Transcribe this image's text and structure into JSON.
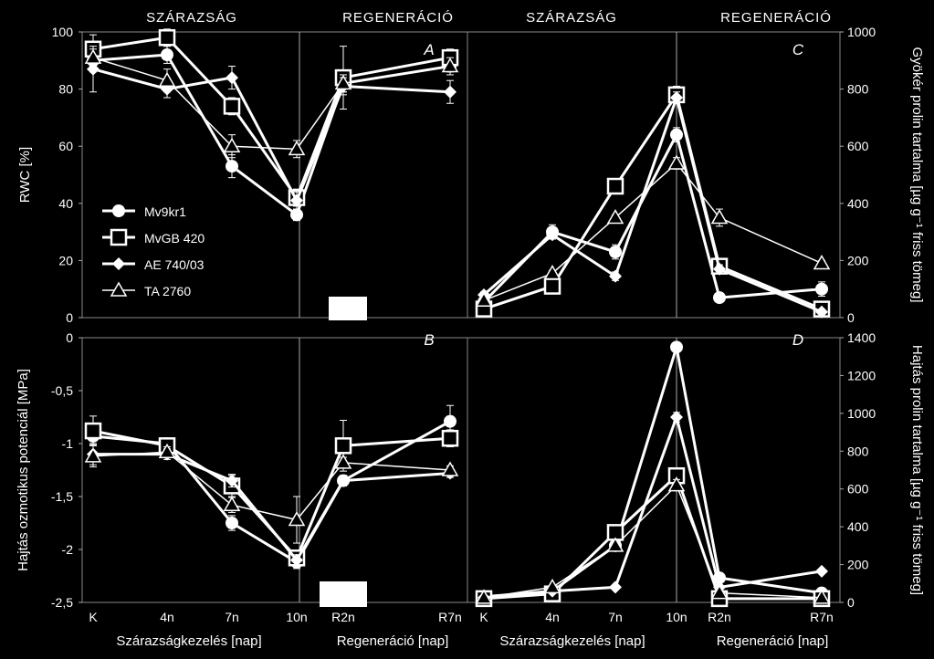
{
  "headers": {
    "left_drought": "SZÁRAZSÁG",
    "left_regen": "REGENERÁCIÓ",
    "right_drought": "SZÁRAZSÁG",
    "right_regen": "REGENERÁCIÓ"
  },
  "x_labels": {
    "left_drought": "Szárazságkezelés [nap]",
    "left_regen": "Regeneráció [nap]",
    "right_drought": "Szárazságkezelés [nap]",
    "right_regen": "Regeneráció [nap]"
  },
  "legend": [
    {
      "name": "Mv9kr1",
      "marker": "circle"
    },
    {
      "name": "MvGB 420",
      "marker": "square"
    },
    {
      "name": "AE 740/03",
      "marker": "diamond"
    },
    {
      "name": "TA 2760",
      "marker": "triangle"
    }
  ],
  "colors": {
    "background": "#000000",
    "foreground": "#ffffff"
  },
  "chart_data": [
    {
      "panel": "A",
      "type": "line",
      "categories": [
        "K",
        "4n",
        "7n",
        "10n",
        "R2n",
        "R7n"
      ],
      "ylabel": "RWC [%]",
      "ylim": [
        0,
        100
      ],
      "yticks": [
        "0",
        "20",
        "40",
        "60",
        "80",
        "100"
      ],
      "axis_side": "left",
      "series": [
        {
          "name": "Mv9kr1",
          "values": [
            90,
            92,
            53,
            36,
            82,
            88
          ],
          "err": [
            4,
            3,
            4,
            2,
            3,
            2
          ]
        },
        {
          "name": "MvGB 420",
          "values": [
            94,
            98,
            74,
            42,
            84,
            91
          ],
          "err": [
            5,
            3,
            3,
            3,
            11,
            3
          ]
        },
        {
          "name": "AE 740/03",
          "values": [
            87,
            80,
            84,
            41,
            81,
            79
          ],
          "err": [
            8,
            3,
            4,
            3,
            3,
            4
          ]
        },
        {
          "name": "TA 2760",
          "values": [
            91,
            83,
            60,
            59,
            82,
            88
          ],
          "err": [
            3,
            4,
            4,
            3,
            3,
            3
          ]
        }
      ]
    },
    {
      "panel": "B",
      "type": "line",
      "categories": [
        "K",
        "4n",
        "7n",
        "10n",
        "R2n",
        "R7n"
      ],
      "ylabel": "Hajtás ozmotikus potenciál [MPa]",
      "ylim": [
        -2.5,
        0
      ],
      "yticks": [
        "0",
        "-0,5",
        "-1",
        "-1,5",
        "-2",
        "-2,5"
      ],
      "axis_side": "left",
      "series": [
        {
          "name": "Mv9kr1",
          "values": [
            -0.93,
            -1.0,
            -1.75,
            -2.12,
            -1.35,
            -0.79
          ],
          "err": [
            0.08,
            0.05,
            0.07,
            0.06,
            0.05,
            0.15
          ]
        },
        {
          "name": "MvGB 420",
          "values": [
            -0.88,
            -1.02,
            -1.4,
            -2.08,
            -1.02,
            -0.95
          ],
          "err": [
            0.14,
            0.05,
            0.1,
            0.05,
            0.24,
            0.08
          ]
        },
        {
          "name": "AE 740/03",
          "values": [
            -1.1,
            -1.1,
            -1.35,
            -2.1,
            -1.35,
            -1.28
          ],
          "err": [
            0.1,
            0.05,
            0.06,
            0.05,
            0.05,
            0.04
          ]
        },
        {
          "name": "TA 2760",
          "values": [
            -1.12,
            -1.08,
            -1.58,
            -1.72,
            -1.18,
            -1.25
          ],
          "err": [
            0.1,
            0.05,
            0.07,
            0.22,
            0.05,
            0.04
          ]
        }
      ]
    },
    {
      "panel": "C",
      "type": "line",
      "categories": [
        "K",
        "4n",
        "7n",
        "10n",
        "R2n",
        "R7n"
      ],
      "ylabel": "Gyökér prolin tartalma [µg g⁻¹ friss tömeg]",
      "ylim": [
        0,
        1000
      ],
      "yticks": [
        "0",
        "200",
        "400",
        "600",
        "800",
        "1000"
      ],
      "axis_side": "right",
      "series": [
        {
          "name": "Mv9kr1",
          "values": [
            55,
            300,
            230,
            640,
            70,
            100
          ],
          "err": [
            10,
            25,
            25,
            25,
            10,
            25
          ]
        },
        {
          "name": "MvGB 420",
          "values": [
            30,
            110,
            460,
            780,
            180,
            30
          ],
          "err": [
            8,
            10,
            10,
            30,
            20,
            10
          ]
        },
        {
          "name": "AE 740/03",
          "values": [
            80,
            290,
            145,
            770,
            170,
            20
          ],
          "err": [
            10,
            15,
            15,
            20,
            15,
            8
          ]
        },
        {
          "name": "TA 2760",
          "values": [
            60,
            155,
            350,
            540,
            350,
            190
          ],
          "err": [
            8,
            10,
            10,
            20,
            30,
            10
          ]
        }
      ]
    },
    {
      "panel": "D",
      "type": "line",
      "categories": [
        "K",
        "4n",
        "7n",
        "10n",
        "R2n",
        "R7n"
      ],
      "ylabel": "Hajtás prolin tartalma [µg g⁻¹ friss tömeg]",
      "ylim": [
        0,
        1400
      ],
      "yticks": [
        "0",
        "200",
        "400",
        "600",
        "800",
        "1000",
        "1200",
        "1400"
      ],
      "axis_side": "right",
      "series": [
        {
          "name": "Mv9kr1",
          "values": [
            30,
            60,
            300,
            1350,
            130,
            50
          ],
          "err": [
            8,
            10,
            20,
            25,
            20,
            10
          ]
        },
        {
          "name": "MvGB 420",
          "values": [
            20,
            45,
            370,
            670,
            20,
            20
          ],
          "err": [
            8,
            10,
            25,
            40,
            10,
            8
          ]
        },
        {
          "name": "AE 740/03",
          "values": [
            25,
            60,
            80,
            980,
            80,
            165
          ],
          "err": [
            8,
            10,
            10,
            25,
            10,
            10
          ]
        },
        {
          "name": "TA 2760",
          "values": [
            25,
            80,
            300,
            620,
            50,
            25
          ],
          "err": [
            8,
            10,
            20,
            30,
            10,
            8
          ]
        }
      ]
    }
  ]
}
